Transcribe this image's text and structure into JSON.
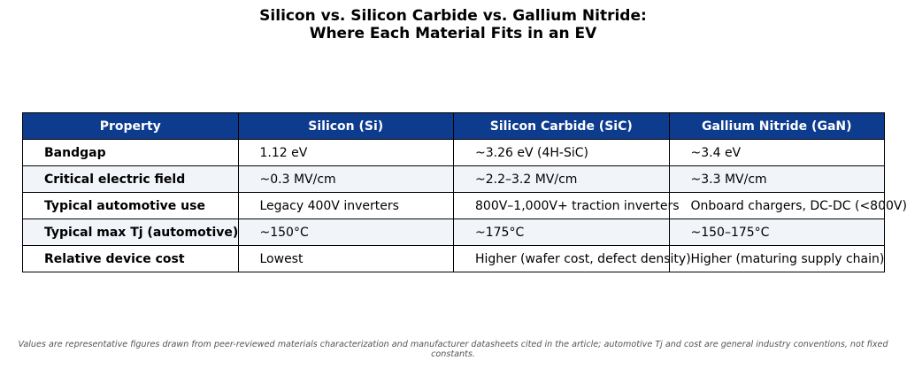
{
  "title_lines": [
    "Silicon vs. Silicon Carbide vs. Gallium Nitride:",
    "Where Each Material Fits in an EV"
  ],
  "chart_data": {
    "type": "table",
    "columns": [
      "Property",
      "Silicon (Si)",
      "Silicon Carbide (SiC)",
      "Gallium Nitride (GaN)"
    ],
    "rows": [
      [
        "Bandgap",
        "1.12 eV",
        "~3.26 eV (4H-SiC)",
        "~3.4 eV"
      ],
      [
        "Critical electric field",
        "~0.3 MV/cm",
        "~2.2–3.2 MV/cm",
        "~3.3 MV/cm"
      ],
      [
        "Typical automotive use",
        "Legacy 400V inverters",
        "800V–1,000V+ traction inverters",
        "Onboard chargers, DC-DC (<800V)"
      ],
      [
        "Typical max Tj (automotive)",
        "~150°C",
        "~175°C",
        "~150–175°C"
      ],
      [
        "Relative device cost",
        "Lowest",
        "Higher (wafer cost, defect density)",
        "Higher (maturing supply chain)"
      ]
    ]
  },
  "footnote_lines": [
    "Values are representative figures drawn from peer-reviewed materials characterization and manufacturer datasheets cited in the article; automotive Tj and cost are general industry conventions, not fixed",
    "constants."
  ],
  "colors": {
    "header_bg": "#0d3b8e",
    "header_text": "#ffffff",
    "alt_row_bg": "#f1f4f9",
    "border": "#000000"
  }
}
